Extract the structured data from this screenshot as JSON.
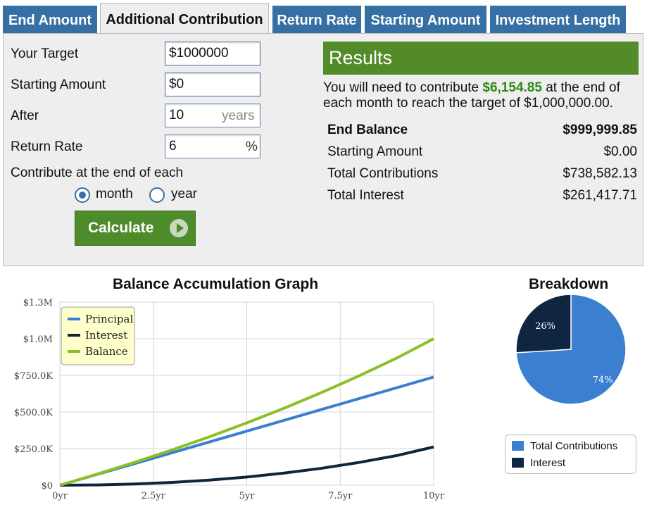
{
  "tabs": [
    {
      "label": "End Amount",
      "active": false
    },
    {
      "label": "Additional Contribution",
      "active": true
    },
    {
      "label": "Return Rate",
      "active": false
    },
    {
      "label": "Starting Amount",
      "active": false
    },
    {
      "label": "Investment Length",
      "active": false
    }
  ],
  "form": {
    "target_label": "Your Target",
    "target_value": "$1000000",
    "starting_label": "Starting Amount",
    "starting_value": "$0",
    "after_label": "After",
    "after_value": "10",
    "after_suffix": "years",
    "rate_label": "Return Rate",
    "rate_value": "6",
    "rate_suffix": "%",
    "contribute_label": "Contribute at the end of each",
    "option_month": "month",
    "option_year": "year",
    "selected_option": "month",
    "calculate_label": "Calculate"
  },
  "results": {
    "title": "Results",
    "msg_pre": "You will need to contribute ",
    "msg_amount": "$6,154.85",
    "msg_post": " at the end of each month to reach the target of $1,000,000.00.",
    "rows": [
      {
        "label": "End Balance",
        "value": "$999,999.85",
        "bold": true
      },
      {
        "label": "Starting Amount",
        "value": "$0.00",
        "bold": false
      },
      {
        "label": "Total Contributions",
        "value": "$738,582.13",
        "bold": false
      },
      {
        "label": "Total Interest",
        "value": "$261,417.71",
        "bold": false
      }
    ]
  },
  "colors": {
    "tab_blue": "#366fa3",
    "principal": "#3a7fd0",
    "interest": "#10243d",
    "balance": "#8cbf26",
    "pie_contrib": "#3a7fd0",
    "pie_interest": "#0f2540",
    "highlight_green": "#2c8a12"
  },
  "chart_data": [
    {
      "type": "line",
      "title": "Balance Accumulation Graph",
      "x_ticks": [
        "0yr",
        "2.5yr",
        "5yr",
        "7.5yr",
        "10yr"
      ],
      "y_ticks": [
        "$0",
        "$250.0K",
        "$500.0K",
        "$750.0K",
        "$1.0M",
        "$1.3M"
      ],
      "xlim": [
        0,
        10
      ],
      "ylim": [
        0,
        1250000
      ],
      "legend_position": "top-left",
      "x": [
        0,
        1,
        2,
        3,
        4,
        5,
        6,
        7,
        8,
        9,
        10
      ],
      "series": [
        {
          "name": "Principal",
          "color": "#3a7fd0",
          "values": [
            0,
            73858,
            147716,
            221575,
            295433,
            369291,
            443149,
            517007,
            590866,
            664724,
            738582
          ]
        },
        {
          "name": "Interest",
          "color": "#10243d",
          "values": [
            0,
            2042,
            8355,
            19242,
            35041,
            56119,
            82878,
            115759,
            155242,
            201847,
            261418
          ]
        },
        {
          "name": "Balance",
          "color": "#8cbf26",
          "values": [
            0,
            75900,
            156071,
            240817,
            330474,
            425410,
            526027,
            632766,
            746108,
            866571,
            1000000
          ]
        }
      ]
    },
    {
      "type": "pie",
      "title": "Breakdown",
      "labels": [
        "Total Contributions",
        "Interest"
      ],
      "values": [
        74,
        26
      ],
      "value_labels": [
        "74%",
        "26%"
      ],
      "colors": [
        "#3a7fd0",
        "#0f2540"
      ]
    }
  ]
}
